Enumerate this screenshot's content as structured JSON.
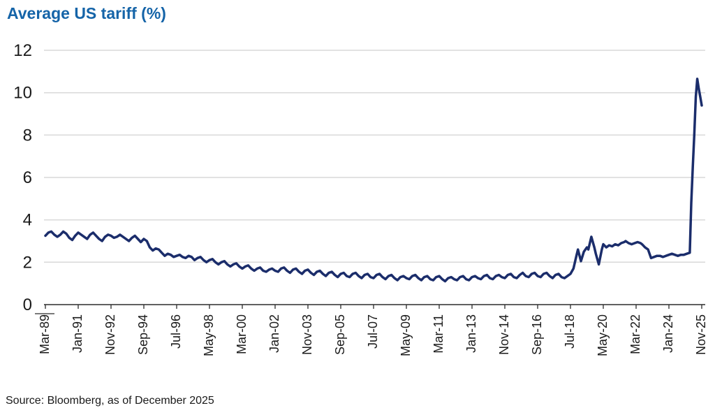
{
  "header": {
    "title": "Average US tariff (%)"
  },
  "footer": {
    "source": "Source: Bloomberg, as of December 2025"
  },
  "colors": {
    "title": "#1564a8",
    "line": "#1b2d6b",
    "grid": "#d9d9d9",
    "axis": "#2b2b2b",
    "tick_text": "#1a1a1a"
  },
  "chart_data": {
    "type": "line",
    "title": "Average US tariff (%)",
    "source": "Source: Bloomberg, as of December 2025",
    "legend": "none",
    "grid": "horizontal-only",
    "y_axis": {
      "min": 0,
      "max": 12,
      "ticks": [
        0,
        2,
        4,
        6,
        8,
        10,
        12
      ],
      "label": "Average US tariff (%)"
    },
    "x_axis": {
      "unit": "months",
      "start": "Mar-1989",
      "end": "Nov-2025",
      "tick_interval_months": 22,
      "tick_labels": [
        "Mar-89",
        "Jan-91",
        "Nov-92",
        "Sep-94",
        "Jul-96",
        "May-98",
        "Mar-00",
        "Jan-02",
        "Nov-03",
        "Sep-05",
        "Jul-07",
        "May-09",
        "Mar-11",
        "Jan-13",
        "Nov-14",
        "Sep-16",
        "Jul-18",
        "May-20",
        "Mar-22",
        "Jan-24",
        "Nov-25"
      ]
    },
    "series": [
      {
        "name": "Average US tariff (%)",
        "points_format": "[months since Mar-1989, tariff %]",
        "points": [
          [
            0,
            3.25
          ],
          [
            2,
            3.4
          ],
          [
            4,
            3.45
          ],
          [
            6,
            3.3
          ],
          [
            8,
            3.2
          ],
          [
            10,
            3.3
          ],
          [
            12,
            3.45
          ],
          [
            14,
            3.35
          ],
          [
            16,
            3.15
          ],
          [
            18,
            3.05
          ],
          [
            20,
            3.25
          ],
          [
            22,
            3.4
          ],
          [
            24,
            3.3
          ],
          [
            26,
            3.2
          ],
          [
            28,
            3.1
          ],
          [
            30,
            3.3
          ],
          [
            32,
            3.4
          ],
          [
            34,
            3.25
          ],
          [
            36,
            3.1
          ],
          [
            38,
            3.0
          ],
          [
            40,
            3.2
          ],
          [
            42,
            3.3
          ],
          [
            44,
            3.25
          ],
          [
            46,
            3.15
          ],
          [
            48,
            3.2
          ],
          [
            50,
            3.3
          ],
          [
            52,
            3.2
          ],
          [
            54,
            3.1
          ],
          [
            56,
            3.0
          ],
          [
            58,
            3.15
          ],
          [
            60,
            3.25
          ],
          [
            62,
            3.1
          ],
          [
            64,
            2.95
          ],
          [
            66,
            3.1
          ],
          [
            68,
            3.0
          ],
          [
            70,
            2.7
          ],
          [
            72,
            2.55
          ],
          [
            74,
            2.65
          ],
          [
            76,
            2.6
          ],
          [
            78,
            2.45
          ],
          [
            80,
            2.3
          ],
          [
            82,
            2.4
          ],
          [
            84,
            2.35
          ],
          [
            86,
            2.25
          ],
          [
            88,
            2.3
          ],
          [
            90,
            2.35
          ],
          [
            92,
            2.25
          ],
          [
            94,
            2.2
          ],
          [
            96,
            2.3
          ],
          [
            98,
            2.25
          ],
          [
            100,
            2.1
          ],
          [
            102,
            2.2
          ],
          [
            104,
            2.25
          ],
          [
            106,
            2.1
          ],
          [
            108,
            2.0
          ],
          [
            110,
            2.1
          ],
          [
            112,
            2.15
          ],
          [
            114,
            2.0
          ],
          [
            116,
            1.9
          ],
          [
            118,
            2.0
          ],
          [
            120,
            2.05
          ],
          [
            122,
            1.9
          ],
          [
            124,
            1.8
          ],
          [
            126,
            1.9
          ],
          [
            128,
            1.95
          ],
          [
            130,
            1.8
          ],
          [
            132,
            1.7
          ],
          [
            134,
            1.8
          ],
          [
            136,
            1.85
          ],
          [
            138,
            1.7
          ],
          [
            140,
            1.6
          ],
          [
            142,
            1.7
          ],
          [
            144,
            1.75
          ],
          [
            146,
            1.6
          ],
          [
            148,
            1.55
          ],
          [
            150,
            1.65
          ],
          [
            152,
            1.7
          ],
          [
            154,
            1.6
          ],
          [
            156,
            1.55
          ],
          [
            158,
            1.7
          ],
          [
            160,
            1.75
          ],
          [
            162,
            1.6
          ],
          [
            164,
            1.5
          ],
          [
            166,
            1.65
          ],
          [
            168,
            1.7
          ],
          [
            170,
            1.55
          ],
          [
            172,
            1.45
          ],
          [
            174,
            1.6
          ],
          [
            176,
            1.65
          ],
          [
            178,
            1.5
          ],
          [
            180,
            1.4
          ],
          [
            182,
            1.55
          ],
          [
            184,
            1.6
          ],
          [
            186,
            1.45
          ],
          [
            188,
            1.35
          ],
          [
            190,
            1.5
          ],
          [
            192,
            1.55
          ],
          [
            194,
            1.4
          ],
          [
            196,
            1.3
          ],
          [
            198,
            1.45
          ],
          [
            200,
            1.5
          ],
          [
            202,
            1.35
          ],
          [
            204,
            1.3
          ],
          [
            206,
            1.45
          ],
          [
            208,
            1.5
          ],
          [
            210,
            1.35
          ],
          [
            212,
            1.25
          ],
          [
            214,
            1.4
          ],
          [
            216,
            1.45
          ],
          [
            218,
            1.3
          ],
          [
            220,
            1.25
          ],
          [
            222,
            1.4
          ],
          [
            224,
            1.45
          ],
          [
            226,
            1.3
          ],
          [
            228,
            1.2
          ],
          [
            230,
            1.35
          ],
          [
            232,
            1.4
          ],
          [
            234,
            1.25
          ],
          [
            236,
            1.15
          ],
          [
            238,
            1.3
          ],
          [
            240,
            1.35
          ],
          [
            242,
            1.25
          ],
          [
            244,
            1.2
          ],
          [
            246,
            1.35
          ],
          [
            248,
            1.4
          ],
          [
            250,
            1.25
          ],
          [
            252,
            1.15
          ],
          [
            254,
            1.3
          ],
          [
            256,
            1.35
          ],
          [
            258,
            1.2
          ],
          [
            260,
            1.15
          ],
          [
            262,
            1.3
          ],
          [
            264,
            1.35
          ],
          [
            266,
            1.2
          ],
          [
            268,
            1.1
          ],
          [
            270,
            1.25
          ],
          [
            272,
            1.3
          ],
          [
            274,
            1.2
          ],
          [
            276,
            1.15
          ],
          [
            278,
            1.3
          ],
          [
            280,
            1.35
          ],
          [
            282,
            1.2
          ],
          [
            284,
            1.15
          ],
          [
            286,
            1.3
          ],
          [
            288,
            1.35
          ],
          [
            290,
            1.25
          ],
          [
            292,
            1.2
          ],
          [
            294,
            1.35
          ],
          [
            296,
            1.4
          ],
          [
            298,
            1.25
          ],
          [
            300,
            1.2
          ],
          [
            302,
            1.35
          ],
          [
            304,
            1.4
          ],
          [
            306,
            1.3
          ],
          [
            308,
            1.25
          ],
          [
            310,
            1.4
          ],
          [
            312,
            1.45
          ],
          [
            314,
            1.3
          ],
          [
            316,
            1.25
          ],
          [
            318,
            1.4
          ],
          [
            320,
            1.5
          ],
          [
            322,
            1.35
          ],
          [
            324,
            1.3
          ],
          [
            326,
            1.45
          ],
          [
            328,
            1.5
          ],
          [
            330,
            1.35
          ],
          [
            332,
            1.3
          ],
          [
            334,
            1.45
          ],
          [
            336,
            1.5
          ],
          [
            338,
            1.35
          ],
          [
            340,
            1.25
          ],
          [
            342,
            1.4
          ],
          [
            344,
            1.45
          ],
          [
            346,
            1.3
          ],
          [
            348,
            1.25
          ],
          [
            350,
            1.35
          ],
          [
            352,
            1.45
          ],
          [
            354,
            1.7
          ],
          [
            356,
            2.3
          ],
          [
            357,
            2.6
          ],
          [
            359,
            2.05
          ],
          [
            361,
            2.5
          ],
          [
            363,
            2.7
          ],
          [
            364,
            2.6
          ],
          [
            366,
            3.2
          ],
          [
            368,
            2.7
          ],
          [
            369,
            2.4
          ],
          [
            371,
            1.9
          ],
          [
            373,
            2.6
          ],
          [
            374,
            2.85
          ],
          [
            376,
            2.7
          ],
          [
            378,
            2.8
          ],
          [
            380,
            2.75
          ],
          [
            382,
            2.85
          ],
          [
            384,
            2.8
          ],
          [
            386,
            2.9
          ],
          [
            388,
            2.95
          ],
          [
            389,
            3.0
          ],
          [
            391,
            2.9
          ],
          [
            393,
            2.85
          ],
          [
            395,
            2.9
          ],
          [
            397,
            2.95
          ],
          [
            399,
            2.9
          ],
          [
            400,
            2.85
          ],
          [
            402,
            2.7
          ],
          [
            404,
            2.6
          ],
          [
            406,
            2.2
          ],
          [
            408,
            2.25
          ],
          [
            410,
            2.3
          ],
          [
            412,
            2.3
          ],
          [
            414,
            2.25
          ],
          [
            416,
            2.3
          ],
          [
            418,
            2.35
          ],
          [
            420,
            2.4
          ],
          [
            422,
            2.35
          ],
          [
            424,
            2.3
          ],
          [
            426,
            2.35
          ],
          [
            428,
            2.35
          ],
          [
            430,
            2.4
          ],
          [
            432,
            2.45
          ],
          [
            433,
            4.8
          ],
          [
            434,
            6.5
          ],
          [
            435,
            8.0
          ],
          [
            436,
            9.8
          ],
          [
            437,
            10.65
          ],
          [
            438,
            10.2
          ],
          [
            439,
            9.8
          ],
          [
            440,
            9.4
          ]
        ]
      }
    ]
  }
}
